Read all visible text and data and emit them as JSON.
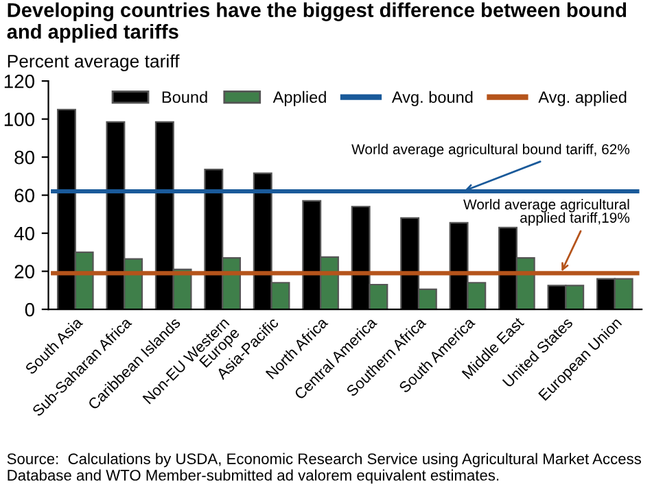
{
  "chart_data": {
    "type": "bar",
    "title": "Developing countries have the biggest difference between bound and applied tariffs",
    "ylabel": "Percent average tariff",
    "categories": [
      "South Asia",
      "Sub-Saharan Africa",
      "Caribbean Islands",
      "Non-EU Western\nEurope",
      "Asia-Pacific",
      "North Africa",
      "Central America",
      "Southern Africa",
      "South America",
      "Middle East",
      "United States",
      "European Union"
    ],
    "series": [
      {
        "name": "Bound",
        "color": "#000000",
        "values": [
          105,
          98.5,
          98.5,
          73.5,
          71.5,
          57,
          54,
          48,
          45.5,
          43,
          12.5,
          16
        ]
      },
      {
        "name": "Applied",
        "color": "#3f7f4a",
        "values": [
          30,
          26.5,
          21,
          27,
          14,
          27.5,
          13,
          10.5,
          14,
          27,
          12.5,
          16
        ]
      }
    ],
    "ref_lines": [
      {
        "axis": "y",
        "value": 62,
        "label": "Avg. bound",
        "color": "#1a5a9a"
      },
      {
        "axis": "y",
        "value": 19,
        "label": "Avg. applied",
        "color": "#b5541b"
      }
    ],
    "annotations": [
      {
        "text": "World average agricultural bound tariff, 62%",
        "x": "South America",
        "y": 62
      },
      {
        "text": "World average agricultural\napplied tariff,19%",
        "x": "United States",
        "y": 19
      },
      "Source:  Calculations by USDA, Economic Research Service using Agricultural Market Access Database and WTO Member-submitted ad valorem equivalent estimates."
    ],
    "ylim": [
      0,
      120
    ],
    "yticks": [
      0,
      20,
      40,
      60,
      80,
      100,
      120
    ],
    "grid": false,
    "legend": "top right"
  }
}
